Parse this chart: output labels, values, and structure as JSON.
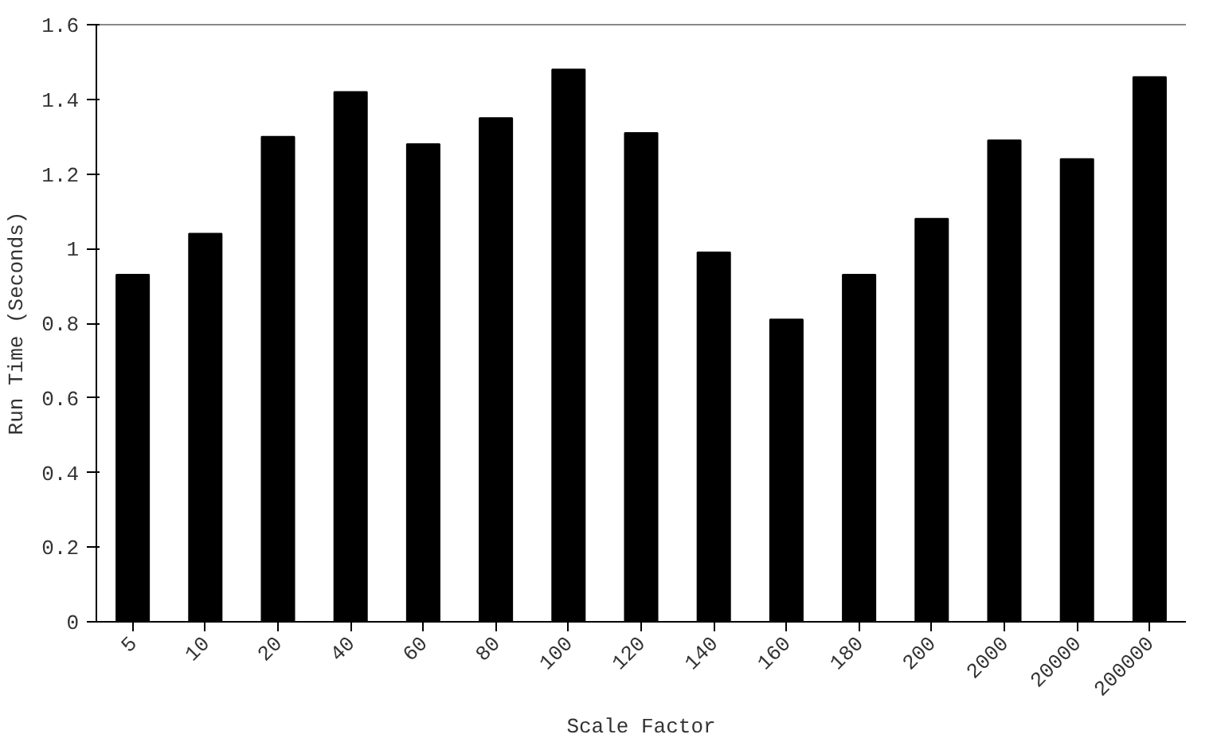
{
  "chart_data": {
    "type": "bar",
    "xlabel": "Scale Factor",
    "ylabel": "Run Time (Seconds)",
    "categories": [
      "5",
      "10",
      "20",
      "40",
      "60",
      "80",
      "100",
      "120",
      "140",
      "160",
      "180",
      "200",
      "2000",
      "20000",
      "200000"
    ],
    "values": [
      0.93,
      1.04,
      1.3,
      1.42,
      1.28,
      1.35,
      1.48,
      1.31,
      0.99,
      0.81,
      0.93,
      1.08,
      1.29,
      1.24,
      1.46
    ],
    "color": "#000000",
    "ylim": [
      0,
      1.6
    ],
    "yticks": [
      0,
      {
        "value": 0.2,
        "label": "0.2"
      },
      {
        "value": 0.4,
        "label": "0.4"
      },
      {
        "value": 0.6,
        "label": "0.6"
      },
      {
        "value": 0.8,
        "label": "0.8"
      },
      1,
      {
        "value": 1.2,
        "label": "1.2"
      },
      {
        "value": 1.4,
        "label": "1.4"
      },
      {
        "value": 1.6,
        "label": "1.6"
      }
    ],
    "grid": false
  }
}
